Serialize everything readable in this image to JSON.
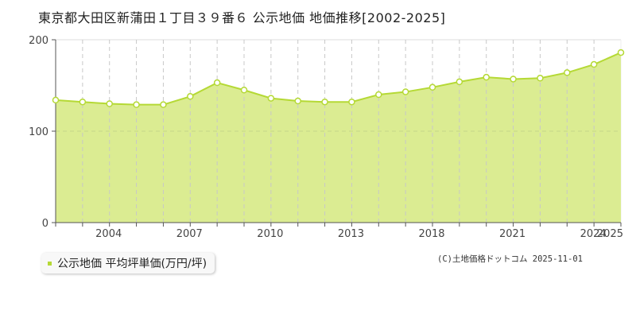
{
  "title": "東京都大田区新蒲田１丁目３９番６ 公示地価 地価推移[2002-2025]",
  "legend": {
    "label": "公示地価 平均坪単価(万円/坪)",
    "color": "#b5d935"
  },
  "copyright": "(C)土地価格ドットコム 2025-11-01",
  "colors": {
    "fill": "#dbec92",
    "line": "#b5d935",
    "grid": "#c8c8c8",
    "axis": "#555555"
  },
  "chart_data": {
    "type": "area",
    "title": "東京都大田区新蒲田１丁目３９番６ 公示地価 地価推移[2002-2025]",
    "xlabel": "",
    "ylabel": "",
    "ylim": [
      0,
      200
    ],
    "yticks": [
      0,
      100,
      200
    ],
    "xtick_labels": [
      "",
      "",
      "2004",
      "",
      "",
      "2007",
      "",
      "",
      "2010",
      "",
      "",
      "2013",
      "",
      "",
      "2018",
      "",
      "",
      "2021",
      "",
      "",
      "2024",
      "2025"
    ],
    "x_index": [
      0,
      1,
      2,
      3,
      4,
      5,
      6,
      7,
      8,
      9,
      10,
      11,
      12,
      13,
      14,
      15,
      16,
      17,
      18,
      19,
      20,
      21
    ],
    "series": [
      {
        "name": "公示地価 平均坪単価(万円/坪)",
        "values": [
          134,
          132,
          130,
          129,
          129,
          138,
          153,
          145,
          136,
          133,
          132,
          132,
          140,
          143,
          148,
          154,
          159,
          157,
          158,
          164,
          173,
          186
        ]
      }
    ],
    "grid": {
      "x": true,
      "y": true
    },
    "legend_position": "bottom-left"
  }
}
